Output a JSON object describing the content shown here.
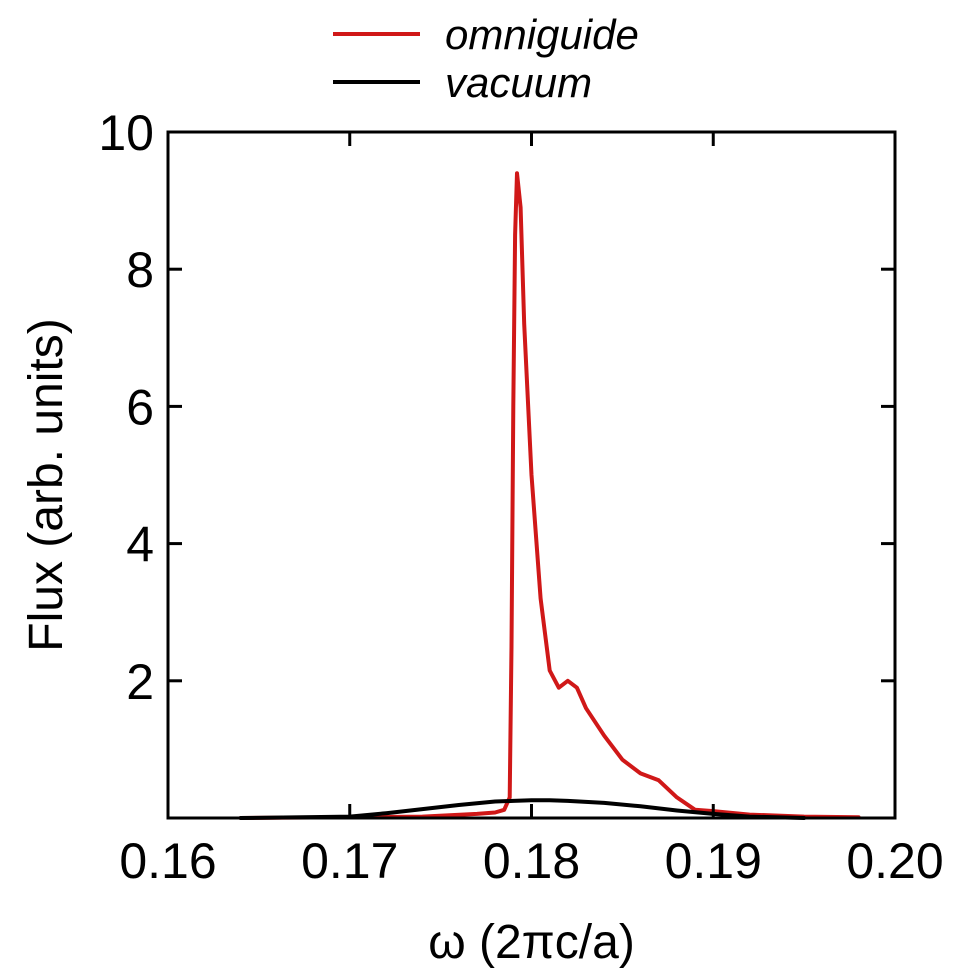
{
  "chart_data": {
    "type": "line",
    "xlabel": "ω (2πc/a)",
    "ylabel": "Flux (arb. units)",
    "xlim": [
      0.16,
      0.2
    ],
    "ylim": [
      0,
      10
    ],
    "x_ticks": [
      0.16,
      0.17,
      0.18,
      0.19,
      0.2
    ],
    "x_tick_labels": [
      "0.16",
      "0.17",
      "0.18",
      "0.19",
      "0.20"
    ],
    "y_ticks": [
      2,
      4,
      6,
      8,
      10
    ],
    "y_tick_labels": [
      "2",
      "4",
      "6",
      "8",
      "10"
    ],
    "grid": false,
    "legend_position": "top-center",
    "series": [
      {
        "name": "omniguide",
        "color": "#d01818",
        "points": [
          [
            0.164,
            0.0
          ],
          [
            0.17,
            0.01
          ],
          [
            0.174,
            0.02
          ],
          [
            0.177,
            0.06
          ],
          [
            0.178,
            0.08
          ],
          [
            0.1785,
            0.12
          ],
          [
            0.1788,
            0.3
          ],
          [
            0.1789,
            2.5
          ],
          [
            0.179,
            6.0
          ],
          [
            0.1791,
            8.5
          ],
          [
            0.1792,
            9.4
          ],
          [
            0.1794,
            8.9
          ],
          [
            0.1796,
            7.2
          ],
          [
            0.18,
            5.0
          ],
          [
            0.1805,
            3.2
          ],
          [
            0.181,
            2.15
          ],
          [
            0.1815,
            1.9
          ],
          [
            0.182,
            2.0
          ],
          [
            0.1825,
            1.9
          ],
          [
            0.183,
            1.6
          ],
          [
            0.184,
            1.2
          ],
          [
            0.185,
            0.85
          ],
          [
            0.186,
            0.65
          ],
          [
            0.187,
            0.55
          ],
          [
            0.188,
            0.3
          ],
          [
            0.189,
            0.12
          ],
          [
            0.19,
            0.1
          ],
          [
            0.192,
            0.05
          ],
          [
            0.195,
            0.02
          ],
          [
            0.198,
            0.01
          ]
        ]
      },
      {
        "name": "vacuum",
        "color": "#000000",
        "points": [
          [
            0.164,
            0.0
          ],
          [
            0.17,
            0.02
          ],
          [
            0.172,
            0.07
          ],
          [
            0.174,
            0.13
          ],
          [
            0.176,
            0.19
          ],
          [
            0.178,
            0.24
          ],
          [
            0.179,
            0.25
          ],
          [
            0.18,
            0.26
          ],
          [
            0.181,
            0.26
          ],
          [
            0.182,
            0.25
          ],
          [
            0.184,
            0.22
          ],
          [
            0.186,
            0.17
          ],
          [
            0.188,
            0.11
          ],
          [
            0.19,
            0.06
          ],
          [
            0.192,
            0.02
          ],
          [
            0.195,
            0.0
          ]
        ]
      }
    ]
  }
}
